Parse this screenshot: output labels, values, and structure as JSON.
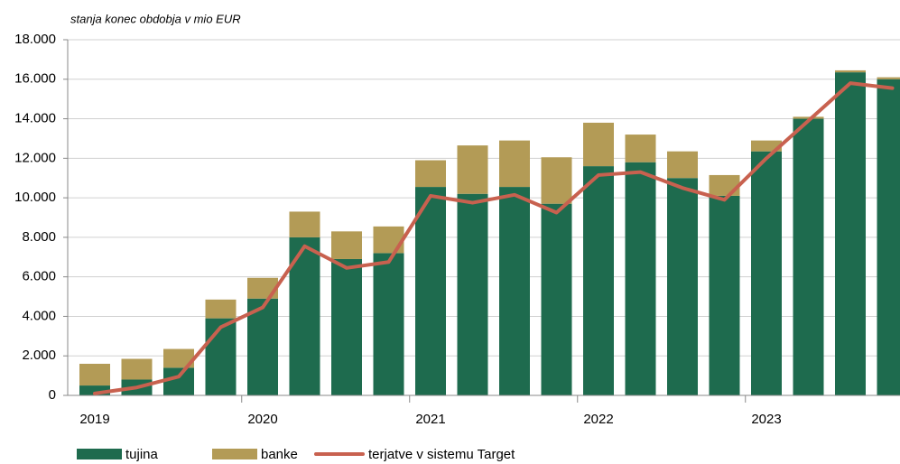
{
  "chart_data": {
    "type": "stacked_bar_line",
    "subtitle": "stanja konec obdobja v mio EUR",
    "categories": [
      "2019",
      null,
      null,
      null,
      "2020",
      null,
      null,
      null,
      "2021",
      null,
      null,
      null,
      "2022",
      null,
      null,
      null,
      "2023",
      null,
      null,
      null
    ],
    "series": [
      {
        "name": "tujina",
        "color": "#1e6b4e",
        "kind": "bar",
        "values": [
          500,
          800,
          1400,
          3900,
          4900,
          8000,
          6900,
          7200,
          10550,
          10200,
          10550,
          9700,
          11600,
          11800,
          11000,
          10100,
          12350,
          14000,
          16350,
          16000
        ]
      },
      {
        "name": "banke",
        "color": "#b39b56",
        "kind": "bar",
        "values": [
          1100,
          1050,
          950,
          950,
          1050,
          1300,
          1400,
          1350,
          1350,
          2450,
          2350,
          2350,
          2200,
          1400,
          1350,
          1050,
          550,
          100,
          100,
          100
        ]
      },
      {
        "name": "terjatve v sistemu Target",
        "color": "#c8614f",
        "kind": "line",
        "values": [
          100,
          400,
          950,
          3450,
          4450,
          7550,
          6450,
          6750,
          10100,
          9750,
          10150,
          9250,
          11150,
          11300,
          10500,
          9900,
          12000,
          13900,
          15800,
          15550
        ]
      }
    ],
    "ylim": [
      0,
      18000
    ],
    "yticks": [
      0,
      {
        "value": 2000,
        "label": "2.000"
      },
      {
        "value": 4000,
        "label": "4.000"
      },
      {
        "value": 6000,
        "label": "6.000"
      },
      {
        "value": 8000,
        "label": "8.000"
      },
      {
        "value": 10000,
        "label": "10.000"
      },
      {
        "value": 12000,
        "label": "12.000"
      },
      {
        "value": 14000,
        "label": "14.000"
      },
      {
        "value": 16000,
        "label": "16.000"
      },
      {
        "value": 18000,
        "label": "18.000"
      }
    ],
    "grid": true
  }
}
